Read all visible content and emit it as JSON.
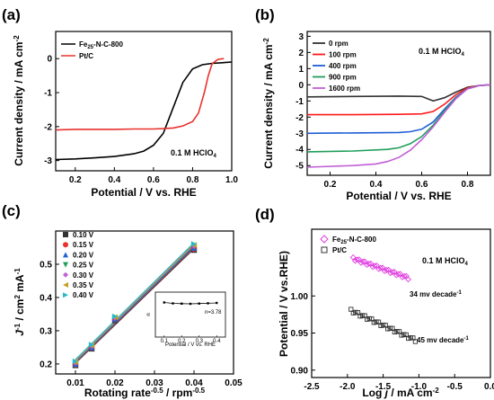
{
  "chart_data": [
    {
      "id": "a",
      "type": "line",
      "panel_label": "(a)",
      "xlabel": "Potential / V vs. RHE",
      "ylabel": "Current density / mA cm⁻²",
      "xlim": [
        0.1,
        1.0
      ],
      "ylim": [
        -3.3,
        0.8
      ],
      "xticks": [
        0.2,
        0.4,
        0.6,
        0.8,
        1.0
      ],
      "xtick_labels": [
        "0.2",
        "0.4",
        "0.6",
        "0.8",
        "1.0"
      ],
      "yticks": [
        -3,
        -2,
        -1,
        0
      ],
      "ytick_labels": [
        "-3",
        "-2",
        "-1",
        "0"
      ],
      "annotation": "0.1 M HClO4",
      "legend_position": "top-left",
      "series": [
        {
          "name": "Fe25-N-C-800",
          "color": "#000000",
          "x": [
            0.1,
            0.2,
            0.3,
            0.4,
            0.5,
            0.55,
            0.6,
            0.65,
            0.7,
            0.75,
            0.8,
            0.85,
            0.9,
            0.95,
            1.0
          ],
          "y": [
            -2.97,
            -2.95,
            -2.92,
            -2.88,
            -2.8,
            -2.72,
            -2.55,
            -2.2,
            -1.45,
            -0.7,
            -0.3,
            -0.18,
            -0.14,
            -0.12,
            -0.1
          ]
        },
        {
          "name": "Pt/C",
          "color": "#e8322d",
          "x": [
            0.1,
            0.2,
            0.3,
            0.4,
            0.5,
            0.6,
            0.65,
            0.7,
            0.75,
            0.8,
            0.83,
            0.86,
            0.88,
            0.9,
            0.93,
            0.96
          ],
          "y": [
            -2.1,
            -2.08,
            -2.08,
            -2.08,
            -2.07,
            -2.07,
            -2.06,
            -2.04,
            -1.98,
            -1.85,
            -1.6,
            -1.0,
            -0.5,
            -0.15,
            -0.02,
            0.0
          ]
        }
      ]
    },
    {
      "id": "b",
      "type": "line",
      "panel_label": "(b)",
      "xlabel": "Potential / V vs. RHE",
      "ylabel": "Current density / mA cm⁻²",
      "xlim": [
        0.1,
        0.9
      ],
      "ylim": [
        -5.6,
        3.3
      ],
      "xticks": [
        0.2,
        0.4,
        0.6,
        0.8
      ],
      "xtick_labels": [
        "0.2",
        "0.4",
        "0.6",
        "0.8"
      ],
      "yticks": [
        -5,
        -4,
        -3,
        -2,
        -1,
        0,
        1,
        2,
        3
      ],
      "ytick_labels": [
        "-5",
        "-4",
        "-3",
        "-2",
        "-1",
        "0",
        "1",
        "2",
        "3"
      ],
      "annotation": "0.1 M HClO4",
      "legend_position": "top-left",
      "series": [
        {
          "name": "0 rpm",
          "color": "#333333",
          "x": [
            0.1,
            0.3,
            0.5,
            0.6,
            0.65,
            0.7,
            0.75,
            0.8,
            0.85,
            0.9
          ],
          "y": [
            -0.75,
            -0.72,
            -0.7,
            -0.72,
            -1.0,
            -0.8,
            -0.45,
            -0.15,
            -0.05,
            0.0
          ]
        },
        {
          "name": "100 rpm",
          "color": "#ff1a1a",
          "x": [
            0.1,
            0.3,
            0.5,
            0.6,
            0.65,
            0.7,
            0.75,
            0.8,
            0.85,
            0.9
          ],
          "y": [
            -1.85,
            -1.85,
            -1.83,
            -1.8,
            -1.65,
            -1.2,
            -0.6,
            -0.2,
            -0.05,
            0.0
          ]
        },
        {
          "name": "400 rpm",
          "color": "#1f5fd6",
          "x": [
            0.1,
            0.3,
            0.5,
            0.55,
            0.6,
            0.65,
            0.7,
            0.75,
            0.8,
            0.85,
            0.9
          ],
          "y": [
            -3.0,
            -2.98,
            -2.95,
            -2.9,
            -2.75,
            -2.3,
            -1.5,
            -0.75,
            -0.25,
            -0.05,
            0.0
          ]
        },
        {
          "name": "900 rpm",
          "color": "#1f9e5a",
          "x": [
            0.1,
            0.3,
            0.45,
            0.5,
            0.55,
            0.6,
            0.65,
            0.7,
            0.75,
            0.8,
            0.85,
            0.9
          ],
          "y": [
            -4.15,
            -4.1,
            -4.0,
            -3.9,
            -3.65,
            -3.2,
            -2.5,
            -1.6,
            -0.8,
            -0.25,
            -0.05,
            0.0
          ]
        },
        {
          "name": "1600 rpm",
          "color": "#c15fd6",
          "x": [
            0.1,
            0.3,
            0.4,
            0.45,
            0.5,
            0.55,
            0.6,
            0.65,
            0.7,
            0.75,
            0.8,
            0.85,
            0.9
          ],
          "y": [
            -5.1,
            -5.0,
            -4.9,
            -4.75,
            -4.5,
            -4.05,
            -3.4,
            -2.6,
            -1.7,
            -0.85,
            -0.25,
            -0.05,
            0.0
          ]
        }
      ]
    },
    {
      "id": "c",
      "type": "scatter",
      "panel_label": "(c)",
      "xlabel": "Rotating rate^-0.5 / rpm^-0.5",
      "xlabel_main": "Rotating rate",
      "xlabel_exp1": "-0.5",
      "xlabel_mid": " / rpm",
      "xlabel_exp2": "-0.5",
      "ylabel_j": "J",
      "ylabel_exp1": "-1",
      "ylabel_mid": " / cm",
      "ylabel_exp2": "2",
      "ylabel_end": " mA",
      "ylabel_exp3": "-1",
      "xlim": [
        0.005,
        0.05
      ],
      "ylim": [
        0.17,
        0.6
      ],
      "xticks": [
        0.01,
        0.02,
        0.03,
        0.04,
        0.05
      ],
      "xtick_labels": [
        "0.01",
        "0.02",
        "0.03",
        "0.04",
        "0.05"
      ],
      "yticks": [
        0.2,
        0.3,
        0.4,
        0.5
      ],
      "ytick_labels": [
        "0.2",
        "0.3",
        "0.4",
        "0.5"
      ],
      "legend_position": "top-left",
      "x": [
        0.01,
        0.0141,
        0.02,
        0.04
      ],
      "series": [
        {
          "name": "0.10 V",
          "color": "#333333",
          "marker": "square",
          "values": [
            0.196,
            0.246,
            0.331,
            0.543
          ]
        },
        {
          "name": "0.15 V",
          "color": "#e8322d",
          "marker": "circle",
          "values": [
            0.198,
            0.248,
            0.333,
            0.546
          ]
        },
        {
          "name": "0.20 V",
          "color": "#1f5fd6",
          "marker": "triangle-up",
          "values": [
            0.2,
            0.25,
            0.335,
            0.549
          ]
        },
        {
          "name": "0.25 V",
          "color": "#1f9e5a",
          "marker": "triangle-down",
          "values": [
            0.202,
            0.252,
            0.337,
            0.552
          ]
        },
        {
          "name": "0.30 V",
          "color": "#c15fd6",
          "marker": "diamond",
          "values": [
            0.204,
            0.254,
            0.339,
            0.555
          ]
        },
        {
          "name": "0.35 V",
          "color": "#c8a020",
          "marker": "triangle-left",
          "values": [
            0.206,
            0.256,
            0.341,
            0.558
          ]
        },
        {
          "name": "0.40 V",
          "color": "#2ab8c8",
          "marker": "triangle-right",
          "values": [
            0.208,
            0.258,
            0.343,
            0.561
          ]
        }
      ],
      "inset": {
        "type": "line",
        "xlabel": "Potential / V vs. RHE",
        "ylabel": "n",
        "annotation": "n=3.78",
        "xlim": [
          0.05,
          0.45
        ],
        "ylim": [
          0,
          5
        ],
        "xtick_labels": [
          "0.1",
          "0.2",
          "0.3",
          "0.4"
        ],
        "xticks": [
          0.1,
          0.2,
          0.3,
          0.4
        ],
        "x": [
          0.1,
          0.15,
          0.2,
          0.25,
          0.3,
          0.35,
          0.4
        ],
        "y": [
          3.85,
          3.75,
          3.72,
          3.7,
          3.73,
          3.76,
          3.8
        ]
      }
    },
    {
      "id": "d",
      "type": "scatter",
      "panel_label": "(d)",
      "xlabel_main": "Log ",
      "xlabel_j": "j",
      "xlabel_mid": " / mA cm",
      "xlabel_exp": "-2",
      "ylabel": "Potential / V vs.RHE)",
      "xlim": [
        -2.5,
        0.0
      ],
      "ylim": [
        0.89,
        1.09
      ],
      "xticks": [
        -2.5,
        -2.0,
        -1.5,
        -1.0,
        -0.5,
        0.0
      ],
      "xtick_labels": [
        "-2.5",
        "-2.0",
        "-1.5",
        "-1.0",
        "-0.5",
        "0.0"
      ],
      "yticks": [
        0.9,
        1.0
      ],
      "ytick_labels": [
        "0.90",
        "1.00"
      ],
      "yticks_all": [
        0.95
      ],
      "ytick_label_mid": "0.95",
      "annotation": "0.1 M HClO4",
      "legend_position": "top-left",
      "series": [
        {
          "name": "Fe25-N-C-800",
          "color": "#e040e0",
          "marker": "diamond",
          "x_start": -1.92,
          "x_end": -1.15,
          "y_start": 1.05,
          "y_end": 1.024,
          "label": "34 mv decade-1"
        },
        {
          "name": "Pt/C",
          "color": "#333333",
          "marker": "square",
          "x_start": -1.95,
          "x_end": -1.05,
          "y_start": 0.98,
          "y_end": 0.94,
          "label": "45 mv decade-1"
        }
      ]
    }
  ],
  "text": {
    "a_ylabel": "Current density / mA cm",
    "a_ylabel_exp": "-2",
    "b_ylabel": "Current density / mA cm",
    "b_ylabel_exp": "-2",
    "hclo4_main": "0.1 M HClO",
    "hclo4_sub": "4",
    "fe_leg_a": "Fe",
    "fe_leg_sub": "25",
    "fe_leg_rest": "-N-C-800",
    "pt_leg": "Pt/C",
    "d_lbl1_main": "34 mv decade",
    "d_lbl1_exp": "-1",
    "d_lbl2_main": "45 mv decade",
    "d_lbl2_exp": "-1"
  }
}
